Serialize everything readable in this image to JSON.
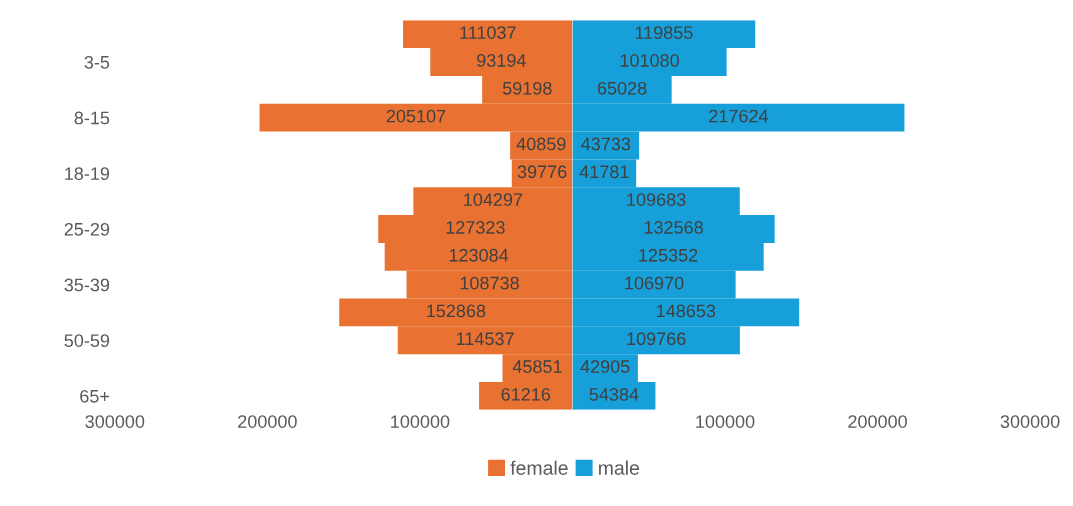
{
  "chart_data": [
    {
      "type": "bar",
      "orientation": "horizontal",
      "data_labels": true,
      "legend": "bottom right",
      "categories": [
        null,
        "3-5",
        null,
        "8-15",
        null,
        "18-19",
        null,
        "25-29",
        null,
        "35-39",
        null,
        "50-59",
        null,
        "65+"
      ],
      "series": [
        {
          "name": "female",
          "color": "#e97132",
          "values": [
            111037,
            93194,
            59198,
            205107,
            40859,
            39776,
            104297,
            127323,
            123084,
            108738,
            152868,
            114537,
            45851,
            61216
          ]
        }
      ],
      "xlim": [
        300000,
        0
      ],
      "xticks": [
        300000,
        200000,
        100000
      ],
      "grid": false
    },
    {
      "type": "bar",
      "orientation": "horizontal",
      "data_labels": true,
      "legend": "bottom left",
      "tick_labels": "x",
      "categories": [
        null,
        null,
        null,
        null,
        null,
        null,
        null,
        null,
        null,
        null,
        null,
        null,
        null,
        null
      ],
      "series": [
        {
          "name": "male",
          "color": "#169fd8",
          "values": [
            119855,
            101080,
            65028,
            217624,
            43733,
            41781,
            109683,
            132568,
            125352,
            106970,
            148653,
            109766,
            42905,
            54384
          ]
        }
      ],
      "xlim": [
        0,
        300000
      ],
      "xticks": [
        100000,
        200000,
        300000
      ],
      "grid": false
    }
  ]
}
